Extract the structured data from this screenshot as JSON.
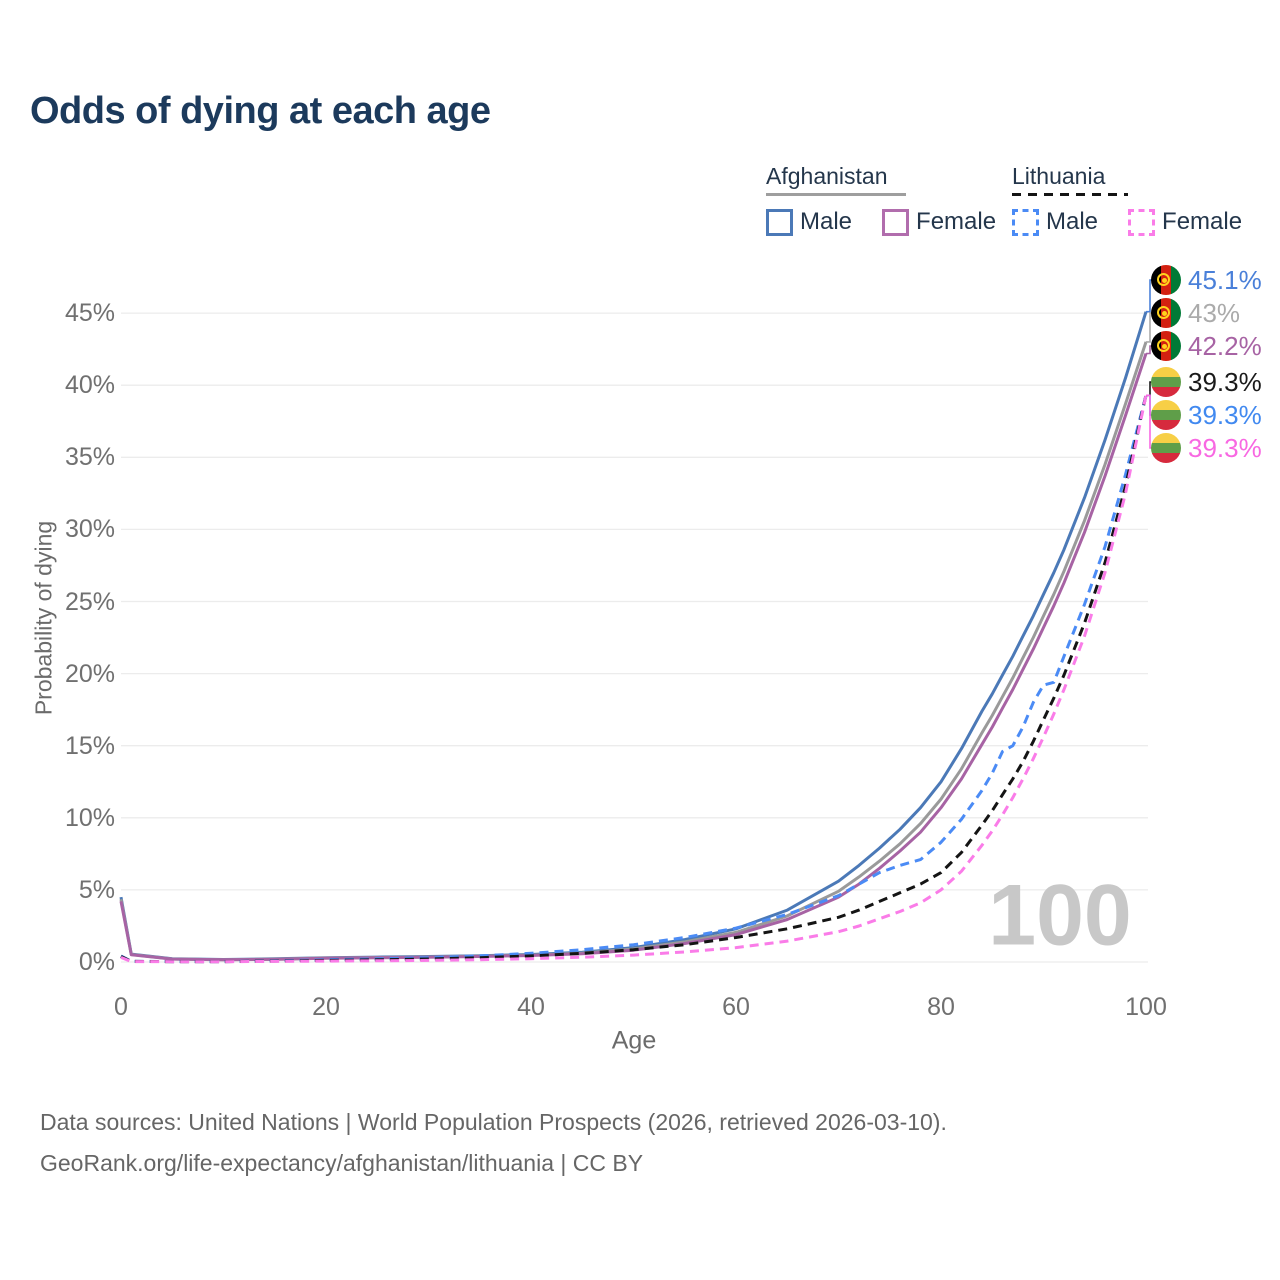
{
  "title": "Odds of dying at each age",
  "legend": {
    "groups": [
      {
        "country": "Afghanistan",
        "underline_style": "solid",
        "underline_color": "#9e9e9e",
        "items": [
          {
            "label": "Male",
            "color": "#4b79b7",
            "dash": false
          },
          {
            "label": "Female",
            "color": "#b16dad",
            "dash": false
          }
        ]
      },
      {
        "country": "Lithuania",
        "underline_style": "dashed",
        "underline_color": "#141414",
        "items": [
          {
            "label": "Male",
            "color": "#4b8bf5",
            "dash": true
          },
          {
            "label": "Female",
            "color": "#fa7ce8",
            "dash": true
          }
        ]
      }
    ]
  },
  "watermark": "100",
  "chart_data": {
    "type": "line",
    "title": "Odds of dying at each age",
    "xlabel": "Age",
    "ylabel": "Probability of dying",
    "xlim": [
      0,
      100
    ],
    "ylim_percent": [
      0,
      47
    ],
    "grid": true,
    "legend_position": "top-right",
    "x_ticks": [
      0,
      20,
      40,
      60,
      80,
      100
    ],
    "y_ticks": [
      "0%",
      "5%",
      "10%",
      "15%",
      "20%",
      "25%",
      "30%",
      "35%",
      "40%",
      "45%"
    ],
    "x": [
      0,
      1,
      5,
      10,
      15,
      20,
      25,
      30,
      35,
      40,
      45,
      50,
      55,
      60,
      65,
      70,
      72,
      74,
      76,
      78,
      80,
      82,
      84,
      85,
      86,
      87,
      88,
      89,
      90,
      91,
      92,
      94,
      96,
      98,
      100
    ],
    "series": [
      {
        "name": "Afghanistan Male",
        "color": "#4b79b7",
        "dash": false,
        "values": [
          4.5,
          0.55,
          0.22,
          0.17,
          0.22,
          0.3,
          0.34,
          0.38,
          0.44,
          0.52,
          0.68,
          1.0,
          1.55,
          2.3,
          3.6,
          5.6,
          6.7,
          7.9,
          9.2,
          10.7,
          12.5,
          14.8,
          17.4,
          18.6,
          19.9,
          21.2,
          22.6,
          24.0,
          25.5,
          27.0,
          28.6,
          32.2,
          36.2,
          40.5,
          45.1
        ]
      },
      {
        "name": "Afghanistan Total",
        "color": "#9a9a9a",
        "dash": false,
        "values": [
          4.35,
          0.52,
          0.21,
          0.16,
          0.2,
          0.28,
          0.31,
          0.35,
          0.41,
          0.48,
          0.62,
          0.9,
          1.4,
          2.05,
          3.2,
          4.9,
          5.9,
          7.0,
          8.2,
          9.6,
          11.3,
          13.4,
          15.9,
          17.1,
          18.4,
          19.7,
          21.1,
          22.5,
          24.0,
          25.5,
          27.1,
          30.6,
          34.5,
          38.7,
          43.0
        ]
      },
      {
        "name": "Afghanistan Female",
        "color": "#a763a4",
        "dash": false,
        "values": [
          4.2,
          0.5,
          0.2,
          0.15,
          0.18,
          0.26,
          0.29,
          0.33,
          0.38,
          0.45,
          0.57,
          0.82,
          1.28,
          1.9,
          2.95,
          4.5,
          5.4,
          6.5,
          7.7,
          9.0,
          10.7,
          12.7,
          15.1,
          16.3,
          17.6,
          18.9,
          20.3,
          21.7,
          23.2,
          24.7,
          26.3,
          29.8,
          33.7,
          37.9,
          42.2
        ]
      },
      {
        "name": "Lithuania Male",
        "color": "#4b8bf5",
        "dash": true,
        "values": [
          0.42,
          0.05,
          0.03,
          0.03,
          0.08,
          0.16,
          0.22,
          0.3,
          0.42,
          0.6,
          0.85,
          1.2,
          1.7,
          2.35,
          3.3,
          4.6,
          5.4,
          6.2,
          6.7,
          7.1,
          8.3,
          9.9,
          11.9,
          13.1,
          14.6,
          15.0,
          16.3,
          18.0,
          19.2,
          19.4,
          21.2,
          24.8,
          28.8,
          33.8,
          39.3
        ]
      },
      {
        "name": "Lithuania Total",
        "color": "#141414",
        "dash": true,
        "values": [
          0.38,
          0.04,
          0.03,
          0.03,
          0.06,
          0.11,
          0.15,
          0.21,
          0.3,
          0.42,
          0.6,
          0.85,
          1.2,
          1.7,
          2.3,
          3.1,
          3.6,
          4.2,
          4.8,
          5.4,
          6.2,
          7.6,
          9.5,
          10.5,
          11.6,
          12.7,
          13.9,
          15.3,
          16.8,
          18.3,
          19.9,
          23.5,
          27.7,
          33.0,
          39.3
        ]
      },
      {
        "name": "Lithuania Female",
        "color": "#fa7ce8",
        "dash": true,
        "values": [
          0.32,
          0.03,
          0.02,
          0.02,
          0.04,
          0.06,
          0.08,
          0.11,
          0.16,
          0.23,
          0.33,
          0.48,
          0.7,
          1.0,
          1.45,
          2.1,
          2.5,
          3.0,
          3.5,
          4.1,
          5.0,
          6.3,
          8.1,
          9.1,
          10.2,
          11.4,
          12.7,
          14.1,
          15.6,
          17.2,
          18.9,
          22.6,
          27.0,
          32.5,
          39.3
        ]
      }
    ]
  },
  "end_labels": [
    {
      "series": "Afghanistan Male",
      "flag": "afghanistan-flag-icon",
      "value": "45.1%",
      "end_value": 45.1,
      "color": "#4a80d9"
    },
    {
      "series": "Afghanistan Total",
      "flag": "afghanistan-flag-icon",
      "value": "43%",
      "end_value": 43.0,
      "color": "#ababab"
    },
    {
      "series": "Afghanistan Female",
      "flag": "afghanistan-flag-icon",
      "value": "42.2%",
      "end_value": 42.2,
      "color": "#a763a4"
    },
    {
      "series": "Lithuania Total",
      "flag": "lithuania-flag-icon",
      "value": "39.3%",
      "end_value": 39.3,
      "color": "#1a1a1a"
    },
    {
      "series": "Lithuania Male",
      "flag": "lithuania-flag-icon",
      "value": "39.3%",
      "end_value": 39.3,
      "color": "#4189f0"
    },
    {
      "series": "Lithuania Female",
      "flag": "lithuania-flag-icon",
      "value": "39.3%",
      "end_value": 39.3,
      "color": "#f868e2"
    }
  ],
  "footer": {
    "line1": "Data sources: United Nations | World Population Prospects (2026, retrieved 2026-03-10).",
    "line2": "GeoRank.org/life-expectancy/afghanistan/lithuania | CC BY"
  }
}
